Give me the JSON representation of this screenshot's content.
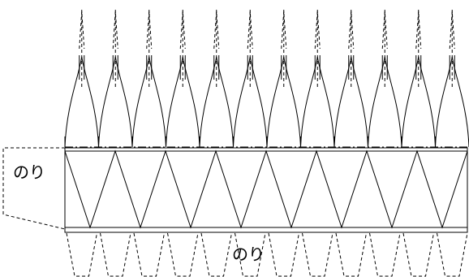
{
  "diagram": {
    "glue_label_left": "のり",
    "glue_label_bottom": "のり",
    "strip_count": 12,
    "zigzag_triangles": 8,
    "bottom_tab_count": 12
  }
}
